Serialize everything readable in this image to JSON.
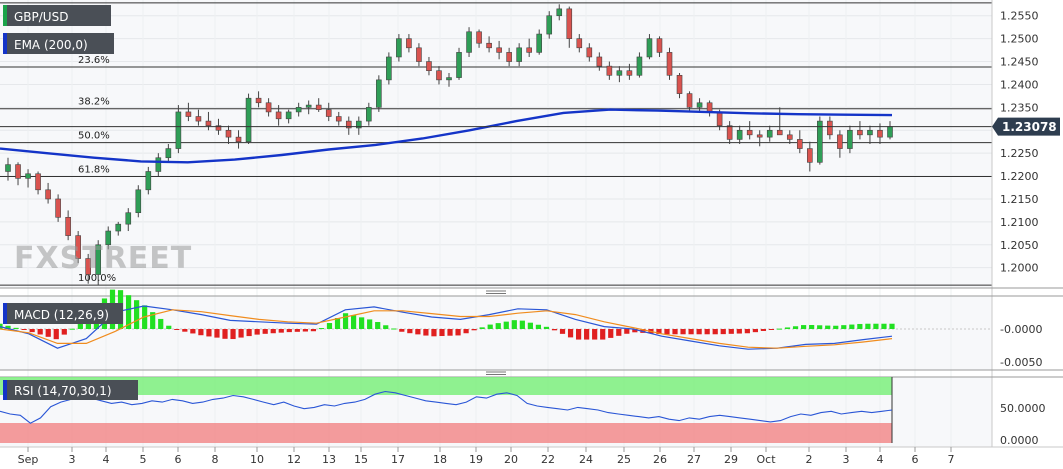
{
  "chart_data": {
    "type": "candlestick",
    "symbol": "GBP/USD",
    "ema_label": "EMA (200,0)",
    "macd_label": "MACD (12,26,9)",
    "rsi_label": "RSI (14,70,30,1)",
    "last_price": "1.23078",
    "watermark": "FXSTREET",
    "price_ticks": [
      "1.2550",
      "1.2500",
      "1.2450",
      "1.2400",
      "1.2350",
      "1.2300",
      "1.2250",
      "1.2200",
      "1.2150",
      "1.2100",
      "1.2050",
      "1.2000"
    ],
    "macd_ticks": [
      "-0.0000",
      "-0.0050"
    ],
    "rsi_ticks": [
      "50.0000",
      "0.0000"
    ],
    "x_ticks": [
      "Sep",
      "3",
      "4",
      "5",
      "6",
      "8",
      "10",
      "12",
      "13",
      "15",
      "17",
      "18",
      "19",
      "20",
      "22",
      "24",
      "25",
      "26",
      "27",
      "29",
      "Oct",
      "2",
      "3",
      "4",
      "6",
      "7"
    ],
    "ylim": [
      1.196,
      1.258
    ],
    "fib_levels": [
      {
        "label": "23.6%",
        "value": 1.2438
      },
      {
        "label": "38.2%",
        "value": 1.2347
      },
      {
        "label": "50.0%",
        "value": 1.2273
      },
      {
        "label": "61.8%",
        "value": 1.2199
      },
      {
        "label": "100.0%",
        "value": 1.1962
      }
    ],
    "top_line": 1.2578,
    "last_value": 1.2308,
    "candles": [
      [
        1.221,
        1.224,
        1.219,
        1.2225
      ],
      [
        1.2225,
        1.223,
        1.218,
        1.2195
      ],
      [
        1.2195,
        1.2215,
        1.2175,
        1.2205
      ],
      [
        1.2205,
        1.221,
        1.216,
        1.217
      ],
      [
        1.217,
        1.2185,
        1.214,
        1.215
      ],
      [
        1.215,
        1.216,
        1.21,
        1.211
      ],
      [
        1.211,
        1.2125,
        1.206,
        1.207
      ],
      [
        1.207,
        1.208,
        1.201,
        1.202
      ],
      [
        1.202,
        1.203,
        1.1965,
        1.1985
      ],
      [
        1.1985,
        1.206,
        1.1962,
        1.205
      ],
      [
        1.205,
        1.209,
        1.204,
        1.208
      ],
      [
        1.208,
        1.21,
        1.207,
        1.2095
      ],
      [
        1.2095,
        1.213,
        1.208,
        1.212
      ],
      [
        1.212,
        1.218,
        1.211,
        1.217
      ],
      [
        1.217,
        1.222,
        1.216,
        1.221
      ],
      [
        1.221,
        1.225,
        1.22,
        1.224
      ],
      [
        1.224,
        1.227,
        1.223,
        1.226
      ],
      [
        1.226,
        1.2355,
        1.225,
        1.234
      ],
      [
        1.234,
        1.236,
        1.232,
        1.233
      ],
      [
        1.233,
        1.2345,
        1.231,
        1.232
      ],
      [
        1.232,
        1.234,
        1.23,
        1.231
      ],
      [
        1.231,
        1.2325,
        1.229,
        1.23
      ],
      [
        1.23,
        1.231,
        1.227,
        1.2285
      ],
      [
        1.2285,
        1.23,
        1.226,
        1.2275
      ],
      [
        1.2275,
        1.238,
        1.227,
        1.237
      ],
      [
        1.237,
        1.2385,
        1.235,
        1.236
      ],
      [
        1.236,
        1.237,
        1.233,
        1.234
      ],
      [
        1.234,
        1.2355,
        1.231,
        1.2325
      ],
      [
        1.2325,
        1.2345,
        1.2315,
        1.234
      ],
      [
        1.234,
        1.236,
        1.233,
        1.235
      ],
      [
        1.235,
        1.2365,
        1.2335,
        1.2355
      ],
      [
        1.2355,
        1.237,
        1.234,
        1.2345
      ],
      [
        1.2345,
        1.236,
        1.232,
        1.233
      ],
      [
        1.233,
        1.234,
        1.231,
        1.232
      ],
      [
        1.232,
        1.233,
        1.229,
        1.2305
      ],
      [
        1.2305,
        1.233,
        1.229,
        1.232
      ],
      [
        1.232,
        1.236,
        1.231,
        1.235
      ],
      [
        1.235,
        1.242,
        1.234,
        1.241
      ],
      [
        1.241,
        1.247,
        1.24,
        1.246
      ],
      [
        1.246,
        1.251,
        1.245,
        1.25
      ],
      [
        1.25,
        1.251,
        1.247,
        1.248
      ],
      [
        1.248,
        1.249,
        1.244,
        1.245
      ],
      [
        1.245,
        1.246,
        1.242,
        1.243
      ],
      [
        1.243,
        1.244,
        1.24,
        1.241
      ],
      [
        1.241,
        1.2425,
        1.2395,
        1.2415
      ],
      [
        1.2415,
        1.248,
        1.241,
        1.247
      ],
      [
        1.247,
        1.2525,
        1.246,
        1.2515
      ],
      [
        1.2515,
        1.252,
        1.248,
        1.249
      ],
      [
        1.249,
        1.2505,
        1.247,
        1.248
      ],
      [
        1.248,
        1.2495,
        1.2455,
        1.247
      ],
      [
        1.247,
        1.248,
        1.244,
        1.245
      ],
      [
        1.245,
        1.249,
        1.244,
        1.248
      ],
      [
        1.248,
        1.25,
        1.246,
        1.247
      ],
      [
        1.247,
        1.252,
        1.2465,
        1.251
      ],
      [
        1.251,
        1.256,
        1.25,
        1.255
      ],
      [
        1.255,
        1.2575,
        1.254,
        1.2565
      ],
      [
        1.2565,
        1.257,
        1.248,
        1.25
      ],
      [
        1.25,
        1.251,
        1.247,
        1.248
      ],
      [
        1.248,
        1.249,
        1.245,
        1.246
      ],
      [
        1.246,
        1.247,
        1.243,
        1.244
      ],
      [
        1.244,
        1.245,
        1.241,
        1.242
      ],
      [
        1.242,
        1.244,
        1.2405,
        1.243
      ],
      [
        1.243,
        1.2445,
        1.241,
        1.242
      ],
      [
        1.242,
        1.247,
        1.2415,
        1.246
      ],
      [
        1.246,
        1.251,
        1.2455,
        1.25
      ],
      [
        1.25,
        1.2505,
        1.246,
        1.247
      ],
      [
        1.247,
        1.248,
        1.241,
        1.242
      ],
      [
        1.242,
        1.2425,
        1.237,
        1.238
      ],
      [
        1.238,
        1.2385,
        1.234,
        1.235
      ],
      [
        1.235,
        1.237,
        1.234,
        1.236
      ],
      [
        1.236,
        1.2365,
        1.233,
        1.234
      ],
      [
        1.234,
        1.2345,
        1.23,
        1.231
      ],
      [
        1.231,
        1.232,
        1.227,
        1.228
      ],
      [
        1.228,
        1.231,
        1.227,
        1.23
      ],
      [
        1.23,
        1.232,
        1.228,
        1.229
      ],
      [
        1.229,
        1.23,
        1.2265,
        1.2285
      ],
      [
        1.2285,
        1.231,
        1.2275,
        1.23
      ],
      [
        1.23,
        1.235,
        1.229,
        1.229
      ],
      [
        1.229,
        1.23,
        1.227,
        1.228
      ],
      [
        1.228,
        1.23,
        1.225,
        1.226
      ],
      [
        1.226,
        1.2275,
        1.221,
        1.223
      ],
      [
        1.223,
        1.233,
        1.2225,
        1.232
      ],
      [
        1.232,
        1.233,
        1.228,
        1.229
      ],
      [
        1.229,
        1.23,
        1.224,
        1.226
      ],
      [
        1.226,
        1.231,
        1.225,
        1.23
      ],
      [
        1.23,
        1.232,
        1.228,
        1.229
      ],
      [
        1.229,
        1.231,
        1.227,
        1.23
      ],
      [
        1.23,
        1.2315,
        1.227,
        1.2285
      ],
      [
        1.2285,
        1.232,
        1.228,
        1.2308
      ]
    ],
    "ema": [
      1.226,
      1.225,
      1.224,
      1.2232,
      1.223,
      1.2236,
      1.2246,
      1.2258,
      1.2268,
      1.2282,
      1.23,
      1.232,
      1.2338,
      1.2345,
      1.2343,
      1.234,
      1.2337,
      1.2335,
      1.2334,
      1.2333
    ],
    "macd_line": [
      0.0005,
      -0.001,
      -0.004,
      -0.002,
      0.0035,
      0.0048,
      0.004,
      0.003,
      0.0018,
      0.0015,
      0.0012,
      0.001,
      0.004,
      0.0046,
      0.0035,
      0.0025,
      0.002,
      0.003,
      0.0042,
      0.004,
      0.002,
      0.0005,
      0.0,
      -0.0015,
      -0.0025,
      -0.0035,
      -0.0042,
      -0.004,
      -0.0032,
      -0.003,
      -0.0022,
      -0.0015
    ],
    "macd_signal": [
      0.0,
      -0.0008,
      -0.003,
      -0.003,
      -0.0005,
      0.0025,
      0.004,
      0.0036,
      0.0028,
      0.002,
      0.0015,
      0.0012,
      0.0025,
      0.0038,
      0.0038,
      0.0032,
      0.0026,
      0.0026,
      0.0033,
      0.0038,
      0.003,
      0.0015,
      0.0003,
      -0.001,
      -0.002,
      -0.003,
      -0.0038,
      -0.004,
      -0.0036,
      -0.0033,
      -0.0027,
      -0.002
    ],
    "rsi": [
      48,
      44,
      42,
      30,
      38,
      55,
      62,
      66,
      70,
      68,
      64,
      60,
      62,
      58,
      60,
      64,
      62,
      66,
      64,
      60,
      62,
      66,
      68,
      72,
      70,
      66,
      62,
      58,
      62,
      56,
      52,
      54,
      58,
      56,
      60,
      62,
      66,
      74,
      78,
      76,
      72,
      68,
      64,
      62,
      60,
      58,
      62,
      70,
      68,
      74,
      76,
      72,
      60,
      56,
      54,
      52,
      50,
      54,
      52,
      50,
      46,
      44,
      42,
      40,
      38,
      40,
      36,
      34,
      38,
      36,
      40,
      42,
      40,
      38,
      36,
      34,
      32,
      34,
      40,
      44,
      42,
      46,
      48,
      44,
      46,
      48,
      46,
      48,
      50
    ]
  }
}
